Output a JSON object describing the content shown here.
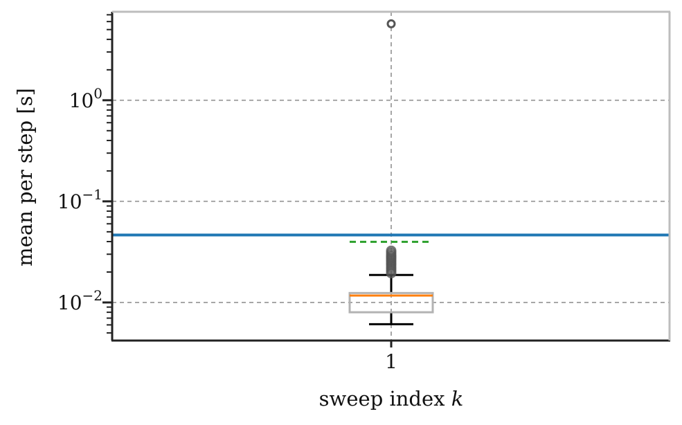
{
  "chart_data": {
    "type": "box",
    "xlabel": "sweep index",
    "xlabel_var": "k",
    "ylabel": "mean per step [s]",
    "yscale": "log",
    "ylim": [
      0.0042,
      7.5
    ],
    "grid": true,
    "categories": [
      "1"
    ],
    "y_ticks": [
      {
        "value": 0.01,
        "base": "10",
        "exp": "−2"
      },
      {
        "value": 0.1,
        "base": "10",
        "exp": "−1"
      },
      {
        "value": 1,
        "base": "10",
        "exp": "0"
      }
    ],
    "box": {
      "category": "1",
      "q1": 0.008,
      "median": 0.0117,
      "q3": 0.0124,
      "whisker_low": 0.0061,
      "whisker_high": 0.0187,
      "mean": 0.0398,
      "outliers": [
        0.0195,
        0.0205,
        0.0215,
        0.0225,
        0.0235,
        0.0245,
        0.0255,
        0.0265,
        0.0275,
        0.0285,
        0.0295,
        0.031,
        0.0325,
        5.7
      ]
    },
    "reference_line": {
      "value": 0.0465
    },
    "colors": {
      "box": "#b3b3b3",
      "median": "#ff7f0e",
      "mean": "#2ca02c",
      "reference": "#1f77b4",
      "whisker": "#000000",
      "outlier": "#555555",
      "grid": "#a6a6a6",
      "axis": "#222222",
      "spine_light": "#bdbdbd"
    }
  }
}
